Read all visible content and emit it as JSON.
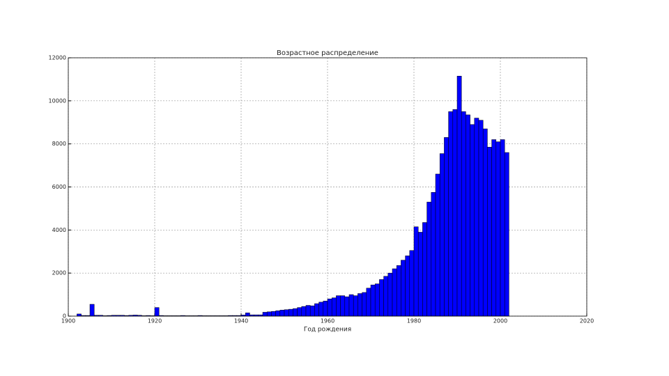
{
  "chart_data": {
    "type": "histogram",
    "title": "Возрастное распределение",
    "x_label": "Год рождения",
    "bins": [
      1902,
      1903,
      1904,
      1905,
      1906,
      1907,
      1908,
      1909,
      1910,
      1911,
      1912,
      1913,
      1914,
      1915,
      1916,
      1917,
      1918,
      1919,
      1920,
      1921,
      1922,
      1923,
      1924,
      1925,
      1926,
      1927,
      1928,
      1929,
      1930,
      1931,
      1932,
      1933,
      1934,
      1935,
      1936,
      1937,
      1938,
      1939,
      1940,
      1941,
      1942,
      1943,
      1944,
      1945,
      1946,
      1947,
      1948,
      1949,
      1950,
      1951,
      1952,
      1953,
      1954,
      1955,
      1956,
      1957,
      1958,
      1959,
      1960,
      1961,
      1962,
      1963,
      1964,
      1965,
      1966,
      1967,
      1968,
      1969,
      1970,
      1971,
      1972,
      1973,
      1974,
      1975,
      1976,
      1977,
      1978,
      1979,
      1980,
      1981,
      1982,
      1983,
      1984,
      1985,
      1986,
      1987,
      1988,
      1989,
      1990,
      1991,
      1992,
      1993,
      1994,
      1995,
      1996,
      1997,
      1998,
      1999,
      2000,
      2001,
      2002
    ],
    "values": [
      100,
      30,
      30,
      550,
      40,
      40,
      20,
      30,
      40,
      40,
      40,
      30,
      40,
      50,
      40,
      20,
      30,
      20,
      400,
      30,
      20,
      20,
      20,
      20,
      30,
      20,
      20,
      20,
      30,
      20,
      20,
      20,
      20,
      20,
      20,
      30,
      30,
      30,
      50,
      150,
      60,
      60,
      60,
      180,
      200,
      220,
      250,
      280,
      300,
      320,
      350,
      400,
      450,
      500,
      480,
      580,
      650,
      700,
      800,
      850,
      950,
      950,
      900,
      1000,
      950,
      1050,
      1100,
      1300,
      1450,
      1500,
      1700,
      1850,
      2000,
      2200,
      2350,
      2600,
      2800,
      3050,
      4150,
      3900,
      4350,
      5300,
      5750,
      6600,
      7550,
      8300,
      9500,
      9600,
      11150,
      9500,
      9350,
      8900,
      9200,
      9100,
      8700,
      7850,
      8200,
      8100,
      8200,
      7600
    ],
    "color": "#0000ff",
    "xlim": [
      1900,
      2020
    ],
    "xticks": [
      1900,
      1920,
      1940,
      1960,
      1980,
      2000,
      2020
    ],
    "ylim": [
      0,
      12000
    ],
    "yticks": [
      0,
      2000,
      4000,
      6000,
      8000,
      10000,
      12000
    ],
    "grid": true
  }
}
